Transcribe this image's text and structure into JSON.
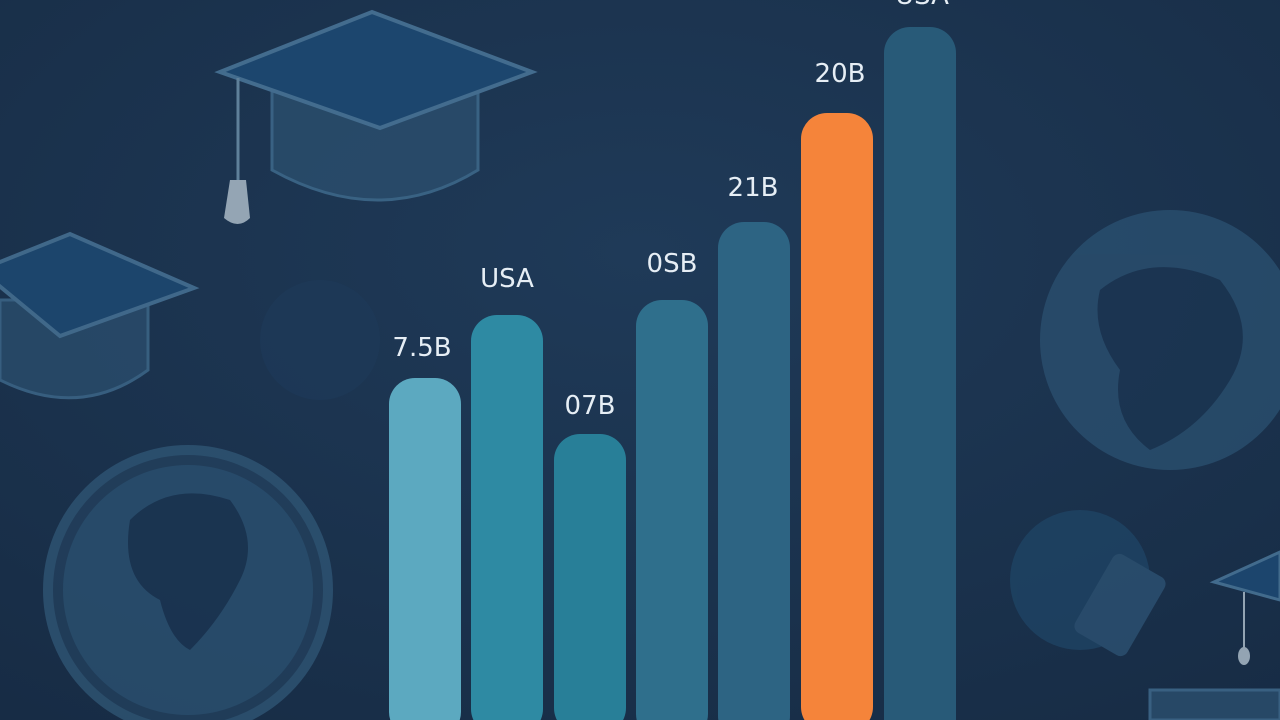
{
  "bars": [
    {
      "label": "7.5B"
    },
    {
      "label": "USA"
    },
    {
      "label": "07B"
    },
    {
      "label": "0SB"
    },
    {
      "label": "21B"
    },
    {
      "label": "20B"
    },
    {
      "label": "USA"
    }
  ]
}
